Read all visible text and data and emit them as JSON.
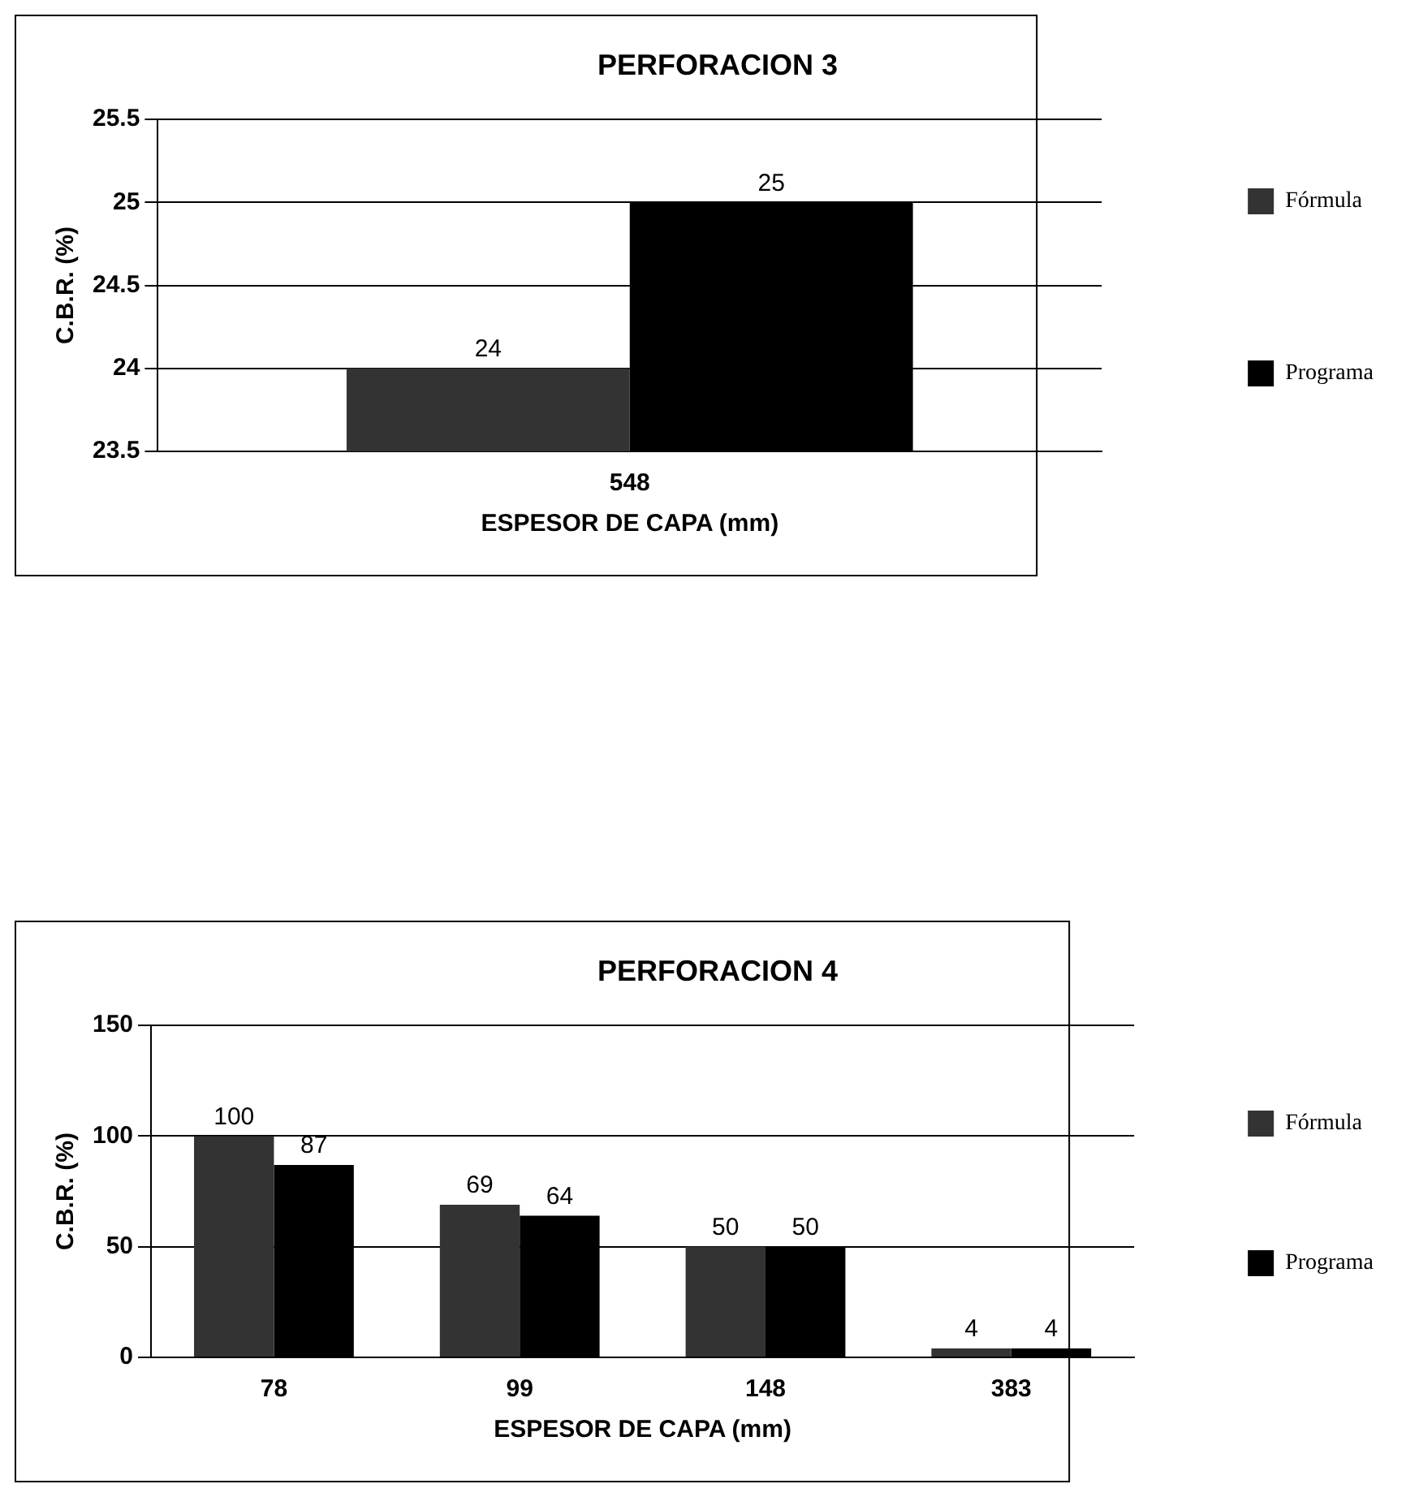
{
  "chart_data": [
    {
      "type": "bar",
      "title": "PERFORACION 3",
      "xlabel": "ESPESOR DE CAPA (mm)",
      "ylabel": "C.B.R. (%)",
      "categories": [
        "548"
      ],
      "series": [
        {
          "name": "Fórmula",
          "color": "#333333",
          "values": [
            24
          ]
        },
        {
          "name": "Programa",
          "color": "#000000",
          "values": [
            25
          ]
        }
      ],
      "ylim": [
        23.5,
        25.5
      ],
      "yticks": [
        23.5,
        24,
        24.5,
        25,
        25.5
      ],
      "grid": "y",
      "legend": "right",
      "data_labels": true
    },
    {
      "type": "bar",
      "title": "PERFORACION 4",
      "xlabel": "ESPESOR DE CAPA (mm)",
      "ylabel": "C.B.R. (%)",
      "categories": [
        "78",
        "99",
        "148",
        "383"
      ],
      "series": [
        {
          "name": "Fórmula",
          "color": "#333333",
          "values": [
            100,
            69,
            50,
            4
          ]
        },
        {
          "name": "Programa",
          "color": "#000000",
          "values": [
            87,
            64,
            50,
            4
          ]
        }
      ],
      "ylim": [
        0,
        150
      ],
      "yticks": [
        0,
        50,
        100,
        150
      ],
      "grid": "y",
      "legend": "right",
      "data_labels": true
    }
  ]
}
